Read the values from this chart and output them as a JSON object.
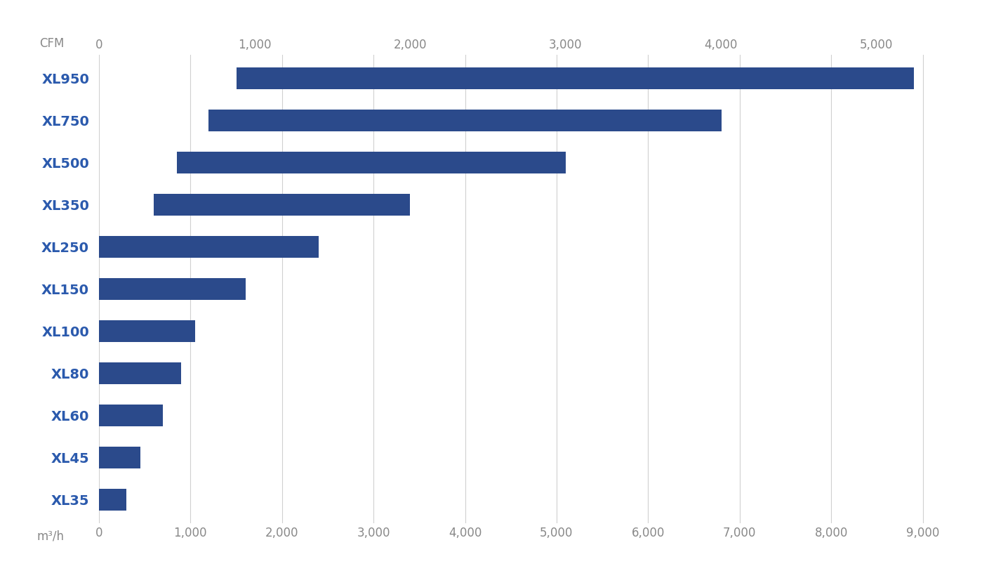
{
  "categories": [
    "XL950",
    "XL750",
    "XL500",
    "XL350",
    "XL250",
    "XL150",
    "XL100",
    "XL80",
    "XL60",
    "XL45",
    "XL35"
  ],
  "values_start": [
    1500,
    1200,
    850,
    600,
    0,
    0,
    0,
    0,
    0,
    0,
    0
  ],
  "values_end": [
    8900,
    6800,
    5100,
    3400,
    2400,
    1600,
    1050,
    900,
    700,
    450,
    300
  ],
  "cfm_per_m3h": 0.5886,
  "bar_color": "#2b4a8b",
  "background_color": "#ffffff",
  "label_color": "#2b5aad",
  "axis_color": "#888888",
  "grid_color": "#d0d0d0",
  "top_axis_label": "CFM",
  "bottom_axis_label": "m³/h",
  "bottom_ticks": [
    0,
    1000,
    2000,
    3000,
    4000,
    5000,
    6000,
    7000,
    8000,
    9000
  ],
  "top_ticks_cfm": [
    0,
    1000,
    2000,
    3000,
    4000,
    5000
  ],
  "xlim_m3h": [
    0,
    9400
  ],
  "bar_height": 0.52,
  "label_fontsize": 14,
  "tick_fontsize": 12
}
